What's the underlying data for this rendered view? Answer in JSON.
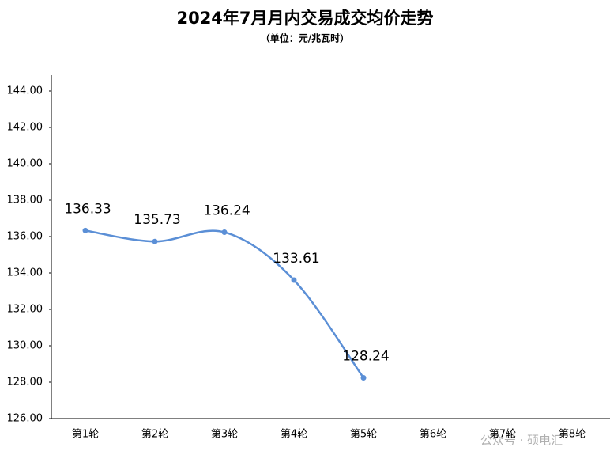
{
  "chart_data": {
    "type": "line",
    "title": "2024年7月月内交易成交均价走势",
    "subtitle": "（单位：元/兆瓦时）",
    "categories": [
      "第1轮",
      "第2轮",
      "第3轮",
      "第4轮",
      "第5轮",
      "第6轮",
      "第7轮",
      "第8轮"
    ],
    "values": [
      136.33,
      135.73,
      136.24,
      133.61,
      128.24,
      null,
      null,
      null
    ],
    "color": "#5b8fd6",
    "ylim": [
      126,
      145
    ],
    "yticks": [
      {
        "value": 126,
        "label": "126.00"
      },
      {
        "value": 128,
        "label": "128.00"
      },
      {
        "value": 130,
        "label": "130.00"
      },
      {
        "value": 132,
        "label": "132.00"
      },
      {
        "value": 134,
        "label": "134.00"
      },
      {
        "value": 136,
        "label": "136.00"
      },
      {
        "value": 138,
        "label": "138.00"
      },
      {
        "value": 140,
        "label": "140.00"
      },
      {
        "value": 142,
        "label": "142.00"
      },
      {
        "value": 144,
        "label": "144.00"
      }
    ],
    "grid": false,
    "watermark": "公众号 · 硕电汇"
  }
}
